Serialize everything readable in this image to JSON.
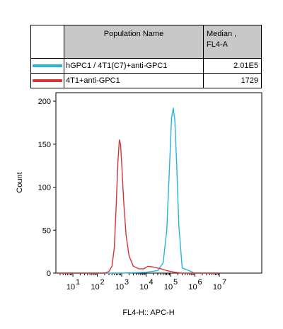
{
  "table": {
    "header_name": "Population Name",
    "header_median_line1": "Median ,",
    "header_median_line2": "FL4-A",
    "rows": [
      {
        "label": "hGPC1 / 4T1(C7)+anti-GPC1",
        "value": "2.01E5",
        "color": "#27b4d8"
      },
      {
        "label": "4T1+anti-GPC1",
        "value": "1729",
        "color": "#d83434"
      }
    ]
  },
  "chart_data": {
    "type": "line",
    "xlabel": "FL4-H:: APC-H",
    "ylabel": "Count",
    "x_scale": "log",
    "xlim": [
      1,
      10000000
    ],
    "ylim": [
      0,
      200
    ],
    "x_ticks": [
      {
        "base": "10",
        "exp": "1"
      },
      {
        "base": "10",
        "exp": "2"
      },
      {
        "base": "10",
        "exp": "3"
      },
      {
        "base": "10",
        "exp": "4"
      },
      {
        "base": "10",
        "exp": "5"
      },
      {
        "base": "10",
        "exp": "6"
      },
      {
        "base": "10",
        "exp": "7"
      }
    ],
    "y_ticks": [
      "0",
      "50",
      "100",
      "150",
      "200"
    ],
    "series": [
      {
        "name": "hGPC1 / 4T1(C7)+anti-GPC1",
        "color": "#27b4d8",
        "x": [
          1,
          1000,
          10000,
          30000,
          50000,
          70000,
          90000,
          110000,
          130000,
          150000,
          180000,
          220000,
          300000,
          1000000,
          10000000
        ],
        "y": [
          0,
          0,
          1,
          3,
          12,
          50,
          120,
          180,
          192,
          178,
          125,
          55,
          6,
          0,
          0
        ]
      },
      {
        "name": "4T1+anti-GPC1",
        "color": "#d83434",
        "x": [
          1,
          200,
          300,
          400,
          500,
          600,
          700,
          800,
          900,
          1000,
          1200,
          1500,
          2000,
          3000,
          5000,
          8000,
          12000,
          20000,
          40000,
          70000,
          150000,
          300000,
          10000000
        ],
        "y": [
          0,
          0,
          2,
          8,
          30,
          80,
          130,
          155,
          150,
          128,
          85,
          45,
          20,
          8,
          5,
          5,
          8,
          7,
          5,
          3,
          1,
          0,
          0
        ]
      }
    ]
  }
}
